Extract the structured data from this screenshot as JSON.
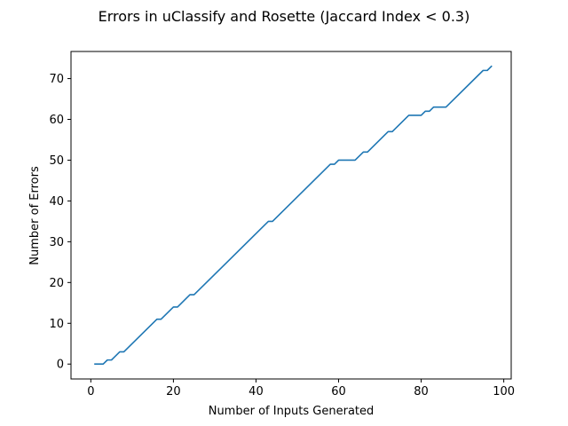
{
  "chart_data": {
    "type": "line",
    "title": "Errors in uClassify and Rosette (Jaccard Index < 0.3)",
    "xlabel": "Number of Inputs Generated",
    "ylabel": "Number of Errors",
    "xlim": [
      -4.8,
      101.8
    ],
    "ylim": [
      -3.65,
      76.65
    ],
    "xticks": [
      0,
      20,
      40,
      60,
      80,
      100
    ],
    "yticks": [
      0,
      10,
      20,
      30,
      40,
      50,
      60,
      70
    ],
    "grid": false,
    "legend": "none",
    "series": [
      {
        "color": "#1f77b4",
        "x": [
          1,
          3,
          4,
          5,
          7,
          8,
          16,
          17,
          20,
          21,
          24,
          25,
          43,
          44,
          58,
          59,
          60,
          64,
          66,
          67,
          72,
          73,
          77,
          80,
          81,
          82,
          83,
          86,
          95,
          96,
          97
        ],
        "y": [
          0,
          0,
          1,
          1,
          3,
          3,
          11,
          11,
          14,
          14,
          17,
          17,
          35,
          35,
          49,
          49,
          50,
          50,
          52,
          52,
          57,
          57,
          61,
          61,
          62,
          62,
          63,
          63,
          72,
          72,
          73
        ]
      }
    ]
  }
}
